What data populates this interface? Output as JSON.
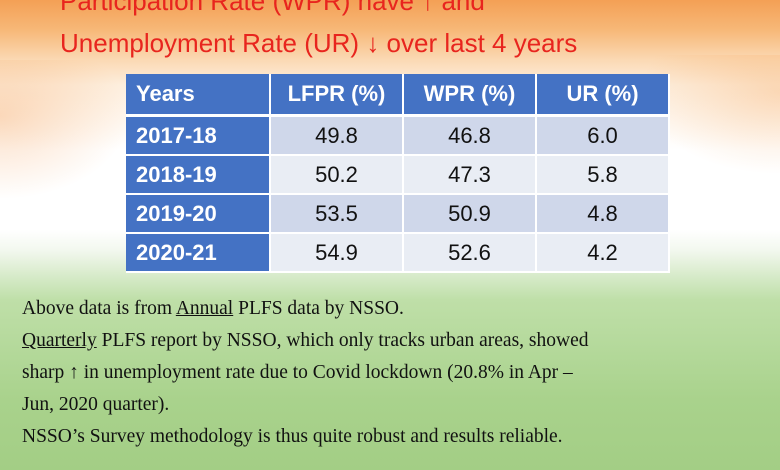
{
  "title": {
    "line1": "Participation Rate (WPR) have ↑ and",
    "line2": "Unemployment Rate (UR) ↓ over last 4 years"
  },
  "table": {
    "headers": [
      "Years",
      "LFPR (%)",
      "WPR (%)",
      "UR (%)"
    ],
    "rows": [
      {
        "year": "2017-18",
        "lfpr": "49.8",
        "wpr": "46.8",
        "ur": "6.0"
      },
      {
        "year": "2018-19",
        "lfpr": "50.2",
        "wpr": "47.3",
        "ur": "5.8"
      },
      {
        "year": "2019-20",
        "lfpr": "53.5",
        "wpr": "50.9",
        "ur": "4.8"
      },
      {
        "year": "2020-21",
        "lfpr": "54.9",
        "wpr": "52.6",
        "ur": "4.2"
      }
    ]
  },
  "notes": {
    "n1_pre": "Above data is from ",
    "n1_u": "Annual",
    "n1_post": " PLFS data by NSSO.",
    "n2_u": "Quarterly",
    "n2_post": " PLFS report by NSSO, which only tracks urban areas, showed",
    "n3": "sharp ↑ in unemployment rate due to Covid lockdown (20.8% in Apr –",
    "n4": "Jun, 2020 quarter).",
    "n5": "NSSO’s Survey methodology is thus quite robust and results reliable."
  },
  "colors": {
    "title": "#e8251e",
    "table_header": "#4472c4",
    "row_odd": "#cfd7ea",
    "row_even": "#e9edf4"
  }
}
